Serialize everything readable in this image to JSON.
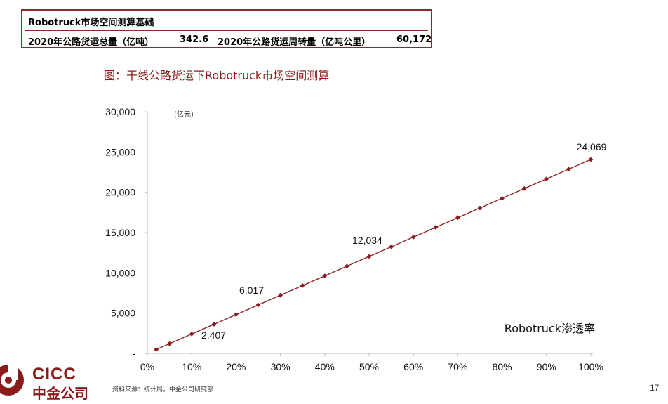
{
  "info_box": {
    "heading": "Robotruck市场空间测算基础",
    "label1": "2020年公路货运总量（亿吨）",
    "value1": "342.6",
    "label2": "2020年公路货运周转量（亿吨公里）",
    "value2": "60,172"
  },
  "chart_title": "图：干线公路货运下Robotruck市场空间测算",
  "chart_data": {
    "type": "line",
    "title": "图：干线公路货运下Robotruck市场空间测算",
    "xlabel": "Robotruck渗透率",
    "ylabel": "(亿元)",
    "x_ticks": [
      "0%",
      "10%",
      "20%",
      "30%",
      "40%",
      "50%",
      "60%",
      "70%",
      "80%",
      "90%",
      "100%"
    ],
    "y_ticks": [
      "-",
      "5,000",
      "10,000",
      "15,000",
      "20,000",
      "25,000",
      "30,000"
    ],
    "xlim": [
      0,
      100
    ],
    "ylim": [
      0,
      30000
    ],
    "series": [
      {
        "color": "#8b1a1a",
        "x": [
          2,
          5,
          10,
          15,
          20,
          25,
          30,
          35,
          40,
          45,
          50,
          55,
          60,
          65,
          70,
          75,
          80,
          85,
          90,
          95,
          100
        ],
        "y": [
          481,
          1203,
          2407,
          3610,
          4814,
          6017,
          7221,
          8424,
          9628,
          10831,
          12034,
          13238,
          14441,
          15645,
          16848,
          18052,
          19255,
          20459,
          21662,
          22866,
          24069
        ]
      }
    ],
    "annotations": [
      {
        "x": 10,
        "y": 2407,
        "text": "2,407"
      },
      {
        "x": 25,
        "y": 6017,
        "text": "6,017"
      },
      {
        "x": 50,
        "y": 12034,
        "text": "12,034"
      },
      {
        "x": 100,
        "y": 24069,
        "text": "24,069"
      }
    ]
  },
  "footer": {
    "logo_top": "CICC",
    "logo_bottom": "中金公司",
    "source": "资料来源：统计局，中金公司研究部",
    "page_number": "17",
    "brand_color": "#8b1a1a"
  }
}
